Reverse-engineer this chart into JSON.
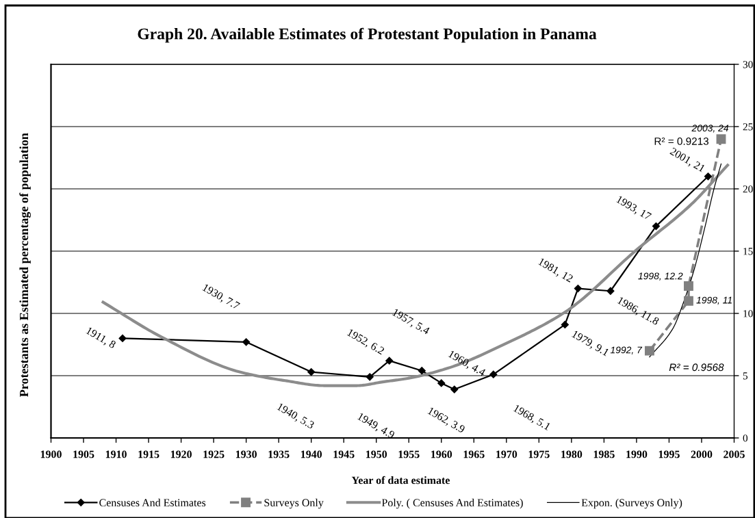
{
  "chart_data": {
    "type": "line",
    "title": "Graph 20. Available Estimates of Protestant Population in Panama",
    "xlabel": "Year of data estimate",
    "ylabel": "Protestants as Estimated percentage of population",
    "xlim": [
      1900,
      2005
    ],
    "xticks": [
      1900,
      1905,
      1910,
      1915,
      1920,
      1925,
      1930,
      1935,
      1940,
      1945,
      1950,
      1955,
      1960,
      1965,
      1970,
      1975,
      1980,
      1985,
      1990,
      1995,
      2000,
      2005
    ],
    "ylim": [
      0,
      30
    ],
    "yticks": [
      0,
      5,
      10,
      15,
      20,
      25,
      30
    ],
    "grid": "y",
    "legend": "bottom",
    "series": [
      {
        "name": "Censuses And Estimates",
        "color": "#000000",
        "marker": "diamond",
        "line_style": "solid",
        "x": [
          1911,
          1930,
          1940,
          1949,
          1952,
          1957,
          1960,
          1962,
          1968,
          1979,
          1981,
          1986,
          1993,
          2001
        ],
        "values": [
          8,
          7.7,
          5.3,
          4.9,
          6.2,
          5.4,
          4.4,
          3.9,
          5.1,
          9.1,
          12,
          11.8,
          17,
          21
        ],
        "value_labels": [
          "1911, 8",
          "1930, 7.7",
          "1940, 5.3",
          "1949, 4.9",
          "1952, 6.2",
          "1957, 5.4",
          "1960, 4.4",
          "1962, 3.9",
          "1968, 5.1",
          "1979, 9.1",
          "1981, 12",
          "1986, 11.8",
          "1993, 17",
          "2001, 21"
        ]
      },
      {
        "name": "Surveys Only",
        "color": "#808080",
        "marker": "square",
        "line_style": "dashed",
        "x": [
          1992,
          1998,
          1998,
          2003
        ],
        "values": [
          7,
          11,
          12.2,
          24
        ],
        "value_labels": [
          "1992, 7",
          "1998, 11",
          "1998, 12.2",
          "2003, 24"
        ]
      },
      {
        "name": "Poly. ( Censuses And Estimates)",
        "color": "#8c8c8c",
        "marker": "none",
        "line_style": "solid",
        "x": [
          1908,
          1917,
          1929,
          1936,
          1942,
          1947,
          1951,
          1955,
          1961,
          1970,
          1979,
          1990,
          1998.5,
          2004
        ],
        "values": [
          10.9,
          8.1,
          5.3,
          4.6,
          4.2,
          4.2,
          4.5,
          4.8,
          5.6,
          7.6,
          10.1,
          15.1,
          18.8,
          21.9
        ]
      },
      {
        "name": "Expon. (Surveys Only)",
        "color": "#000000",
        "marker": "none",
        "line_style": "solid",
        "x": [
          1992,
          1995.6,
          1997.3,
          1998.9,
          2000.5,
          2001.9,
          2003
        ],
        "values": [
          6.5,
          8.8,
          11.0,
          13.6,
          16.9,
          20.0,
          22.0
        ]
      }
    ],
    "annotations": [
      "R² = 0.9213",
      "R² = 0.9568"
    ]
  }
}
